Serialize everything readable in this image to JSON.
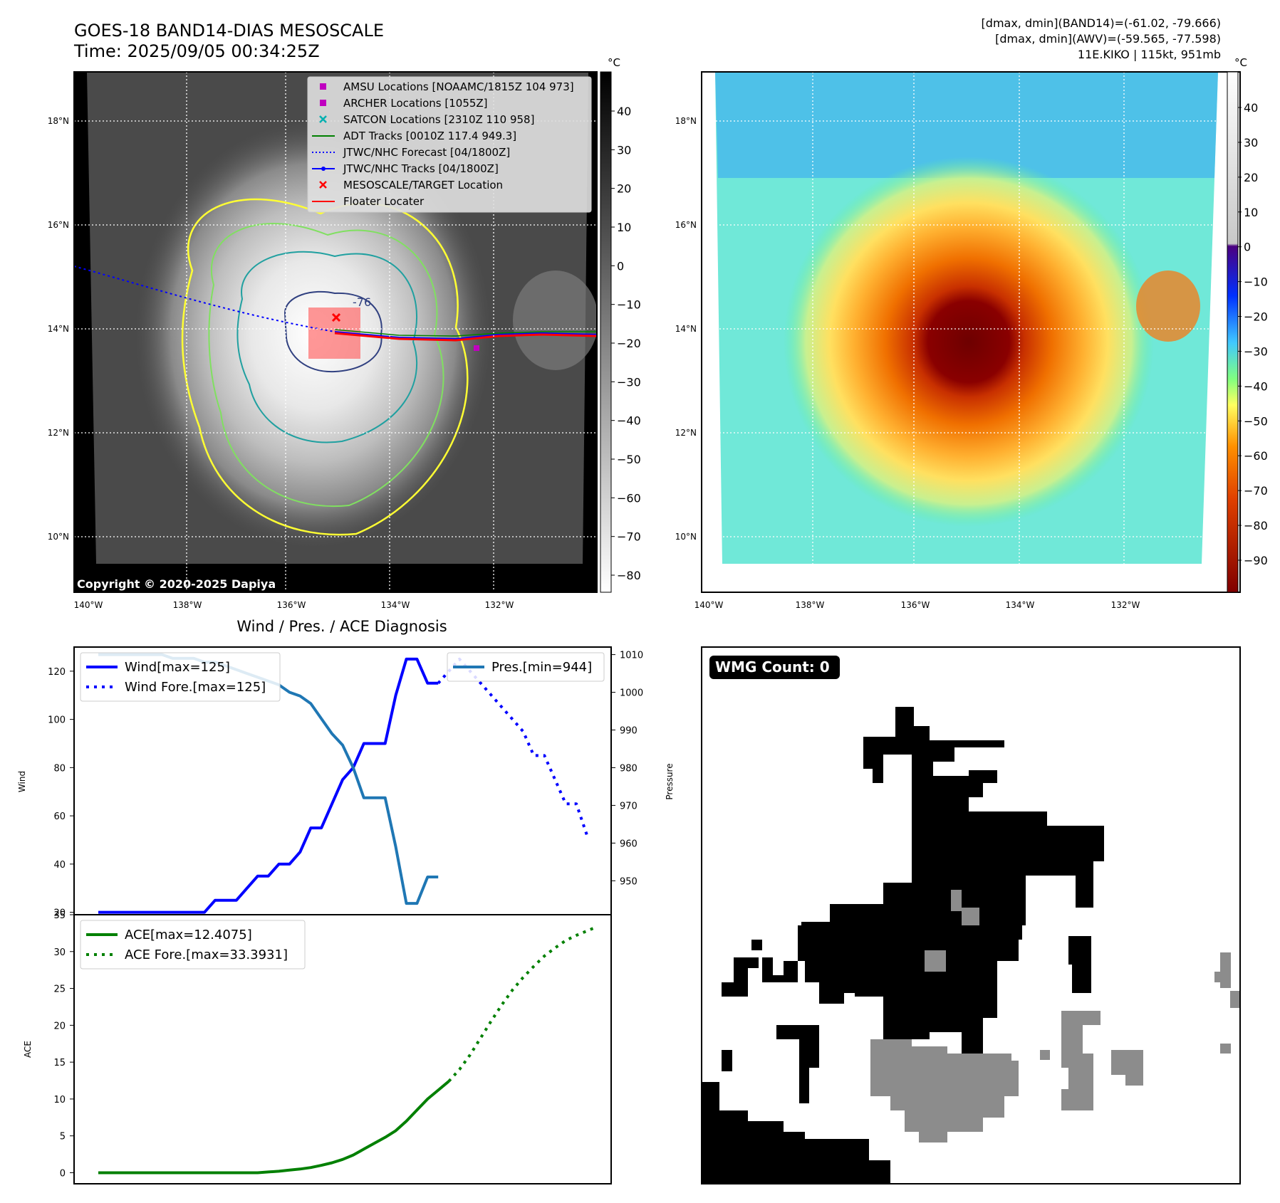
{
  "header": {
    "title_line1": "GOES-18 BAND14-DIAS MESOSCALE",
    "title_line2": "Time: 2025/09/05 00:34:25Z",
    "info_line1": "[dmax, dmin](BAND14)=(-61.02, -79.666)",
    "info_line2": "[dmax, dmin](AWV)=(-59.565, -77.598)",
    "info_line3": "11E.KIKO | 115kt, 951mb"
  },
  "map_axes": {
    "lat_ticks": [
      "18°N",
      "16°N",
      "14°N",
      "12°N",
      "10°N"
    ],
    "lon_ticks": [
      "140°W",
      "138°W",
      "136°W",
      "134°W",
      "132°W"
    ]
  },
  "ir_panel": {
    "copyright": "Copyright © 2020-2025 Dapiya",
    "contour_label": "-76",
    "legend": [
      {
        "label": "AMSU Locations [NOAAMC/1815Z 104 973]",
        "color": "#c000c0",
        "marker": "square"
      },
      {
        "label": "ARCHER Locations [1055Z]",
        "color": "#c000c0",
        "marker": "square"
      },
      {
        "label": "SATCON Locations [2310Z 110 958]",
        "color": "#00b0b0",
        "marker": "x"
      },
      {
        "label": "ADT Tracks [0010Z 117.4 949.3]",
        "color": "#008000",
        "marker": "line"
      },
      {
        "label": "JTWC/NHC Forecast [04/1800Z]",
        "color": "#0000ff",
        "marker": "dotted"
      },
      {
        "label": "JTWC/NHC Tracks [04/1800Z]",
        "color": "#0000ff",
        "marker": "line-dot"
      },
      {
        "label": "MESOSCALE/TARGET Location",
        "color": "#ff0000",
        "marker": "x"
      },
      {
        "label": "Floater Locater",
        "color": "#ff0000",
        "marker": "line"
      }
    ],
    "colorbar": {
      "unit": "°C",
      "ticks": [
        40,
        30,
        20,
        10,
        0,
        -10,
        -20,
        -30,
        -40,
        -50,
        -60,
        -70,
        -80
      ]
    }
  },
  "awv_panel": {
    "colorbar": {
      "unit": "°C",
      "ticks": [
        40,
        30,
        20,
        10,
        0,
        -10,
        -20,
        -30,
        -40,
        -50,
        -60,
        -70,
        -80,
        -90
      ]
    }
  },
  "wmg_panel": {
    "label": "WMG Count: 0"
  },
  "chart_data": [
    {
      "type": "line",
      "title": "Wind / Pres. / ACE Diagnosis",
      "ylabel": "Wind",
      "y2label": "Pressure",
      "ylim": [
        19,
        130
      ],
      "y2lim": [
        941,
        1012
      ],
      "yticks": [
        20,
        40,
        60,
        80,
        100,
        120
      ],
      "y2ticks": [
        950,
        960,
        970,
        980,
        990,
        1000,
        1010
      ],
      "series": [
        {
          "name": "Wind[max=125]",
          "color": "#0000ff",
          "style": "solid",
          "axis": "left",
          "values": [
            20,
            20,
            20,
            20,
            20,
            20,
            20,
            20,
            20,
            20,
            20,
            25,
            25,
            25,
            30,
            35,
            35,
            40,
            40,
            45,
            55,
            55,
            65,
            75,
            80,
            90,
            90,
            90,
            110,
            125,
            125,
            115,
            115
          ]
        },
        {
          "name": "Wind Fore.[max=125]",
          "color": "#0000ff",
          "style": "dotted",
          "axis": "left",
          "start_index": 32,
          "values": [
            115,
            120,
            125,
            120,
            115,
            110,
            105,
            100,
            95,
            85,
            85,
            75,
            65,
            65,
            52
          ]
        },
        {
          "name": "Pres.[min=944]",
          "color": "#1f77b4",
          "style": "solid",
          "axis": "right",
          "values": [
            1010,
            1010,
            1010,
            1010,
            1010,
            1010,
            1010,
            1009,
            1009,
            1009,
            1008,
            1008,
            1007,
            1006,
            1005,
            1004,
            1003,
            1002,
            1000,
            999,
            997,
            993,
            989,
            986,
            980,
            972,
            972,
            972,
            959,
            944,
            944,
            951,
            951
          ]
        }
      ]
    },
    {
      "type": "line",
      "ylabel": "ACE",
      "ylim": [
        -1.5,
        35
      ],
      "yticks": [
        0,
        5,
        10,
        15,
        20,
        25,
        30,
        35
      ],
      "series": [
        {
          "name": "ACE[max=12.4075]",
          "color": "#008000",
          "style": "solid",
          "values": [
            0,
            0,
            0,
            0,
            0,
            0,
            0,
            0,
            0,
            0,
            0,
            0,
            0,
            0,
            0,
            0,
            0.1,
            0.2,
            0.35,
            0.5,
            0.7,
            1.0,
            1.35,
            1.8,
            2.4,
            3.2,
            4.0,
            4.8,
            5.7,
            7.0,
            8.5,
            10.0,
            11.2,
            12.4075
          ]
        },
        {
          "name": "ACE Fore.[max=33.3931]",
          "color": "#008000",
          "style": "dotted",
          "start_index": 33,
          "values": [
            12.4075,
            14.0,
            16.0,
            18.3,
            20.6,
            22.8,
            24.8,
            26.5,
            28.0,
            29.4,
            30.5,
            31.5,
            32.2,
            32.8,
            33.3931
          ]
        }
      ]
    }
  ]
}
